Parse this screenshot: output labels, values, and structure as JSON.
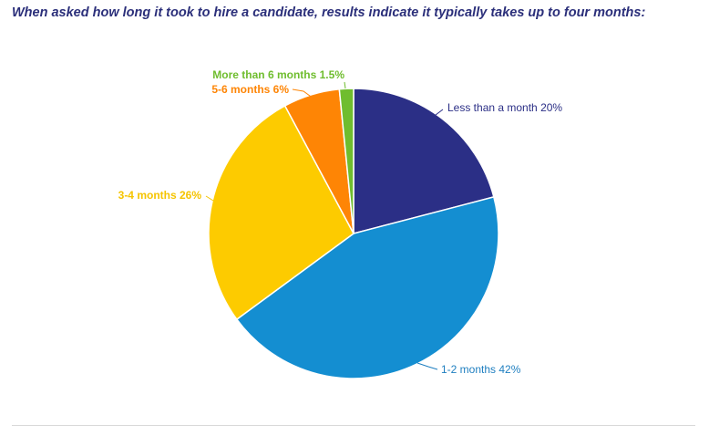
{
  "chart_data": {
    "type": "pie",
    "title": "When asked how long it took to hire a candidate, results indicate it typically takes up to four months:",
    "slices": [
      {
        "label": "Less than a month",
        "value": 20,
        "value_label": "20%",
        "color": "#2b2f86"
      },
      {
        "label": "1-2 months",
        "value": 42,
        "value_label": "42%",
        "color": "#148ed1"
      },
      {
        "label": "3-4 months",
        "value": 26,
        "value_label": "26%",
        "color": "#fdcb00"
      },
      {
        "label": "5-6 months",
        "value": 6,
        "value_label": "6%",
        "color": "#fe8505"
      },
      {
        "label": "More than 6 months",
        "value": 1.5,
        "value_label": "1.5%",
        "color": "#6fbd2e"
      }
    ],
    "label_colors": [
      "#2b2f86",
      "#1f7fc0",
      "#f5c400",
      "#fe8505",
      "#6fbd2e"
    ]
  }
}
